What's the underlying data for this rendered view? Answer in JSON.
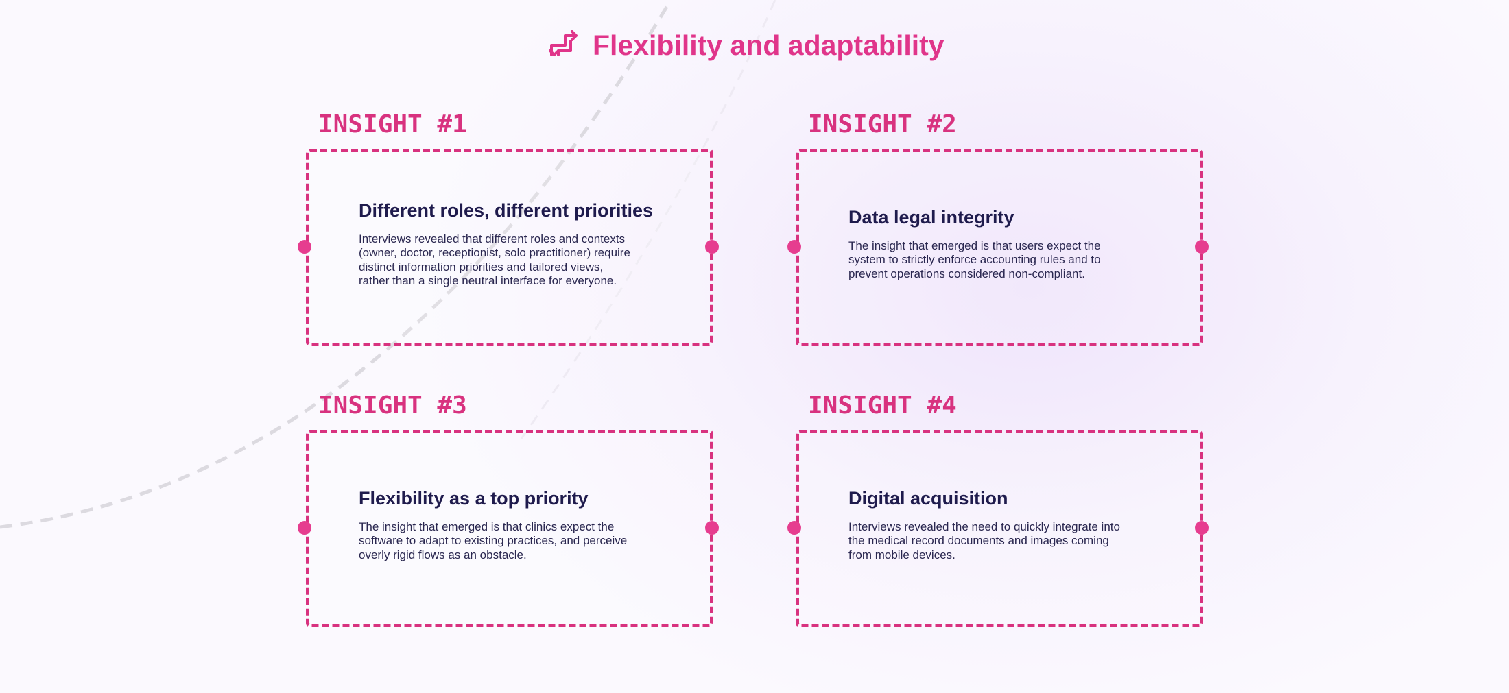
{
  "header": {
    "title": "Flexibility and adaptability"
  },
  "insights": [
    {
      "label": "INSIGHT #1",
      "heading": "Different roles, different priorities",
      "body": [
        "Interviews revealed that different roles and contexts",
        "(owner, doctor, receptionist, solo practitioner) require",
        "distinct information priorities and tailored views,",
        "rather than a single neutral interface for everyone."
      ]
    },
    {
      "label": "INSIGHT #2",
      "heading": "Data legal integrity",
      "body": [
        "The insight that emerged is that users expect the",
        "system to strictly enforce accounting rules and to",
        "prevent operations considered non-compliant."
      ]
    },
    {
      "label": "INSIGHT #3",
      "heading": "Flexibility as a top priority",
      "body": [
        "The insight that emerged is that clinics expect the",
        "software to adapt to existing practices, and perceive",
        "overly rigid flows as an obstacle."
      ]
    },
    {
      "label": "INSIGHT #4",
      "heading": "Digital acquisition",
      "body": [
        "Interviews revealed the need to quickly integrate into",
        "the medical record documents and images coming",
        "from mobile devices."
      ]
    }
  ]
}
